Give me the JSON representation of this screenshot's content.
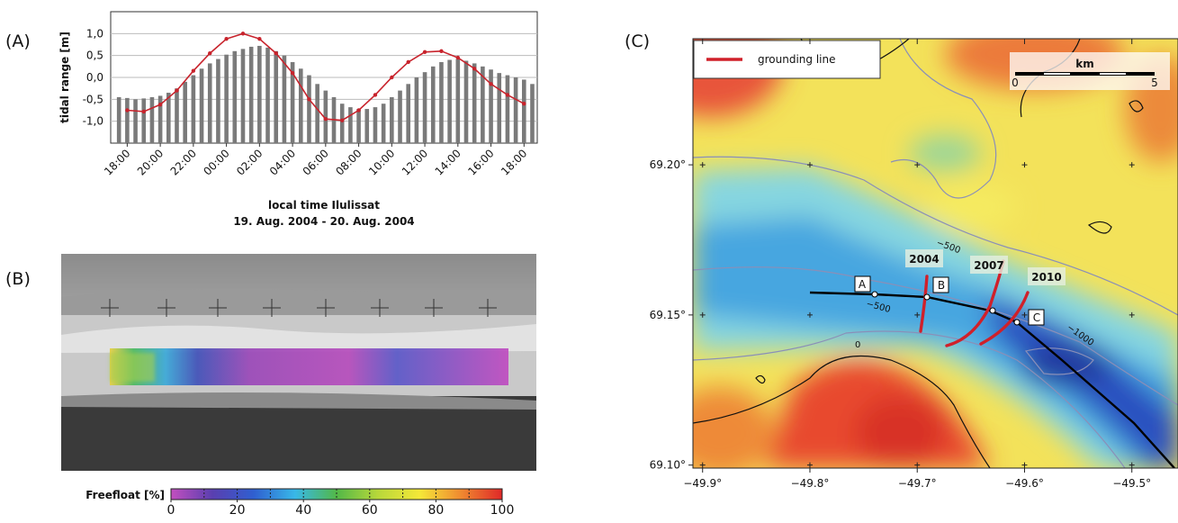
{
  "panel_labels": [
    "(A)",
    "(B)",
    "(C)"
  ],
  "chart_data": [
    {
      "type": "bar",
      "ylabel": "tidal range [m]",
      "xlabel": "local time Ilulissat",
      "subtitle": "19. Aug. 2004 - 20. Aug. 2004",
      "bars": {
        "color": "#7a7a7a",
        "x": [
          -0.5,
          0,
          0.5,
          1,
          1.5,
          2,
          2.5,
          3,
          3.5,
          4,
          4.5,
          5,
          5.5,
          6,
          6.5,
          7,
          7.5,
          8,
          8.5,
          9,
          9.5,
          10,
          10.5,
          11,
          11.5,
          12,
          12.5,
          13,
          13.5,
          14,
          14.5,
          15,
          15.5,
          16,
          16.5,
          17,
          17.5,
          18,
          18.5,
          19,
          19.5,
          20,
          20.5,
          21,
          21.5,
          22,
          22.5,
          23,
          23.5,
          24,
          24.5
        ],
        "values": [
          -0.45,
          -0.47,
          -0.5,
          -0.48,
          -0.45,
          -0.42,
          -0.35,
          -0.25,
          -0.1,
          0.05,
          0.2,
          0.32,
          0.42,
          0.52,
          0.6,
          0.65,
          0.7,
          0.72,
          0.68,
          0.6,
          0.5,
          0.35,
          0.2,
          0.05,
          -0.15,
          -0.3,
          -0.45,
          -0.6,
          -0.68,
          -0.72,
          -0.72,
          -0.68,
          -0.6,
          -0.45,
          -0.3,
          -0.15,
          0,
          0.12,
          0.25,
          0.35,
          0.4,
          0.42,
          0.38,
          0.32,
          0.25,
          0.18,
          0.1,
          0.05,
          0,
          -0.05,
          -0.15
        ]
      },
      "line": {
        "color": "#c8232c",
        "x": [
          0,
          1,
          2,
          3,
          4,
          5,
          6,
          7,
          8,
          9,
          10,
          11,
          12,
          13,
          14,
          15,
          16,
          17,
          18,
          19,
          20,
          21,
          22,
          23,
          24
        ],
        "values": [
          -0.75,
          -0.78,
          -0.62,
          -0.3,
          0.15,
          0.55,
          0.88,
          1.0,
          0.88,
          0.55,
          0.1,
          -0.5,
          -0.95,
          -0.98,
          -0.75,
          -0.4,
          0,
          0.35,
          0.58,
          0.6,
          0.45,
          0.2,
          -0.15,
          -0.4,
          -0.6
        ]
      },
      "xlim": [
        -1,
        24.8
      ],
      "xticks": [
        {
          "value": 0,
          "label": "18:00"
        },
        {
          "value": 2,
          "label": "20:00"
        },
        {
          "value": 4,
          "label": "22:00"
        },
        {
          "value": 6,
          "label": "00:00"
        },
        {
          "value": 8,
          "label": "02:00"
        },
        {
          "value": 10,
          "label": "04:00"
        },
        {
          "value": 12,
          "label": "06:00"
        },
        {
          "value": 14,
          "label": "08:00"
        },
        {
          "value": 16,
          "label": "10:00"
        },
        {
          "value": 18,
          "label": "12:00"
        },
        {
          "value": 20,
          "label": "14:00"
        },
        {
          "value": 22,
          "label": "16:00"
        },
        {
          "value": 24,
          "label": "18:00"
        }
      ],
      "ylim": [
        -1.5,
        1.5
      ],
      "yticks": [
        {
          "value": 1,
          "label": "1,0"
        },
        {
          "value": 0.5,
          "label": "0,5"
        },
        {
          "value": 0,
          "label": "0,0"
        },
        {
          "value": -0.5,
          "label": "-0,5"
        },
        {
          "value": -1,
          "label": "-1,0"
        }
      ],
      "grid": true
    },
    {
      "type": "colorbar",
      "label": "Freefloat [%]",
      "lim": [
        0,
        100
      ],
      "ticks": [
        0,
        20,
        40,
        60,
        80,
        100
      ],
      "colors": [
        "#c24fbf",
        "#5a3fb0",
        "#2f5fd0",
        "#38b8e8",
        "#52b848",
        "#b8d83a",
        "#f4e838",
        "#f08a30",
        "#e02828"
      ]
    },
    {
      "type": "map",
      "legend": {
        "label": "grounding line",
        "color": "#d0202a"
      },
      "scalebar": {
        "unit": "km",
        "ticks": [
          0,
          5
        ]
      },
      "annotations": [
        "A",
        "B",
        "C",
        "2004",
        "2007",
        "2010",
        "−500",
        "−500",
        "−1000",
        "0"
      ],
      "xlim": [
        -49.909,
        -49.457
      ],
      "xticks": [
        {
          "value": -49.9,
          "label": "−49.9°"
        },
        {
          "value": -49.8,
          "label": "−49.8°"
        },
        {
          "value": -49.7,
          "label": "−49.7°"
        },
        {
          "value": -49.6,
          "label": "−49.6°"
        },
        {
          "value": -49.5,
          "label": "−49.5°"
        }
      ],
      "ylim": [
        69.099,
        69.242
      ],
      "yticks": [
        {
          "value": 69.1,
          "label": "69.10°"
        },
        {
          "value": 69.15,
          "label": "69.15°"
        },
        {
          "value": 69.2,
          "label": "69.20°"
        }
      ]
    }
  ]
}
